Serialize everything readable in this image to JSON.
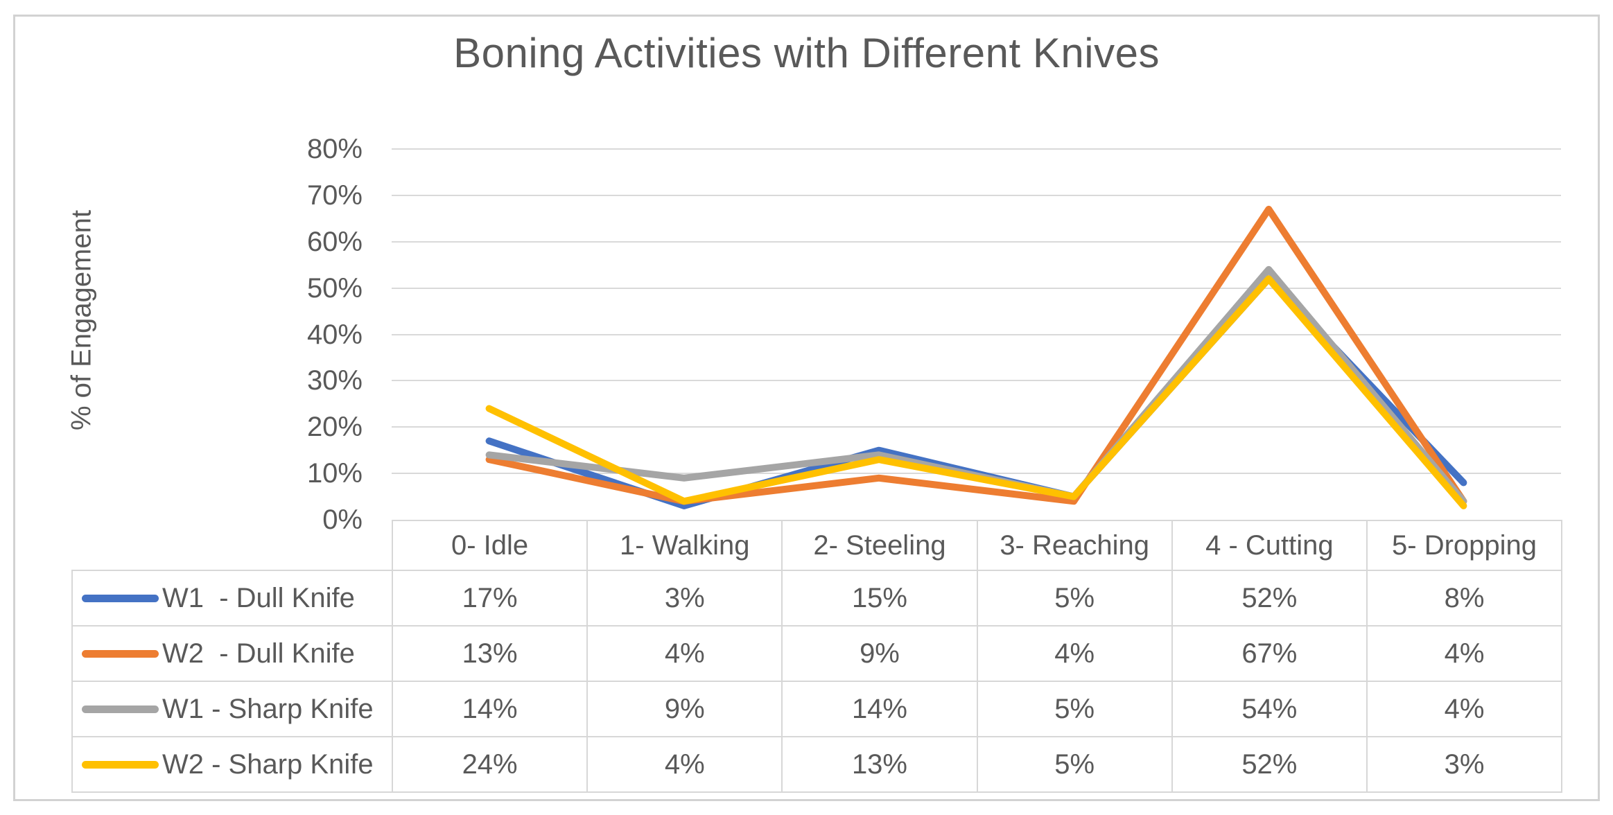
{
  "chart_data": {
    "type": "line",
    "title": "Boning Activities with Different Knives",
    "xlabel": "",
    "ylabel": "% of Engagement",
    "unit": "%",
    "ylim": [
      0,
      80
    ],
    "y_tick_step": 10,
    "y_ticks": [
      "0%",
      "10%",
      "20%",
      "30%",
      "40%",
      "50%",
      "60%",
      "70%",
      "80%"
    ],
    "grid": "horizontal",
    "legend_position": "data-table-left-column",
    "categories": [
      "0- Idle",
      "1- Walking",
      "2- Steeling",
      "3- Reaching",
      "4 - Cutting",
      "5- Dropping"
    ],
    "series": [
      {
        "name": "W1  - Dull Knife",
        "color": "#4472C4",
        "values": [
          17,
          3,
          15,
          5,
          52,
          8
        ]
      },
      {
        "name": "W2  - Dull Knife",
        "color": "#ED7D31",
        "values": [
          13,
          4,
          9,
          4,
          67,
          4
        ]
      },
      {
        "name": "W1 - Sharp Knife",
        "color": "#A5A5A5",
        "values": [
          14,
          9,
          14,
          5,
          54,
          4
        ]
      },
      {
        "name": "W2 - Sharp Knife",
        "color": "#FFC000",
        "values": [
          24,
          4,
          13,
          5,
          52,
          3
        ]
      }
    ]
  },
  "colors": {
    "text": "#595959",
    "gridline": "#D9D9D9",
    "table_border": "#D7D7D7",
    "frame_border": "#D2D2D2",
    "background": "#FFFFFF"
  }
}
